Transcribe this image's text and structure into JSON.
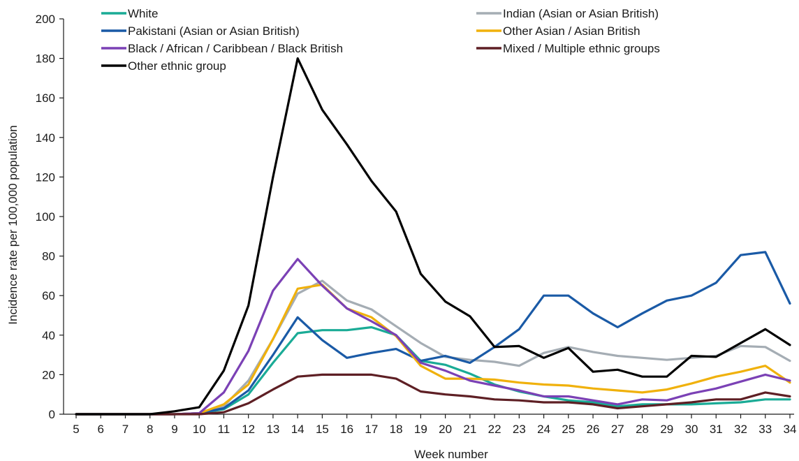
{
  "chart_data": {
    "type": "line",
    "title": "",
    "xlabel": "Week number",
    "ylabel": "Incidence rate per 100,000 population",
    "ylim": [
      0,
      200
    ],
    "yticks": [
      0,
      20,
      40,
      60,
      80,
      100,
      120,
      140,
      160,
      180,
      200
    ],
    "x": [
      5,
      6,
      7,
      8,
      9,
      10,
      11,
      12,
      13,
      14,
      15,
      16,
      17,
      18,
      19,
      20,
      21,
      22,
      23,
      24,
      25,
      26,
      27,
      28,
      29,
      30,
      31,
      32,
      33,
      34
    ],
    "grid": false,
    "legend_position": "top",
    "series": [
      {
        "name": "White",
        "color": "#1aab96",
        "values": [
          0,
          0,
          0,
          0,
          0,
          0.5,
          2.5,
          10,
          26,
          41,
          42.5,
          42.5,
          44,
          40,
          27,
          25,
          20.5,
          15,
          11.5,
          9,
          7,
          6,
          4,
          5,
          5,
          5,
          5.5,
          6,
          7.5,
          7.5
        ]
      },
      {
        "name": "Indian (Asian or Asian British)",
        "color": "#a5adb4",
        "values": [
          0,
          0,
          0,
          0,
          0,
          0.5,
          4,
          17,
          38,
          61,
          67.5,
          57.5,
          53,
          44.5,
          36,
          29,
          27.5,
          26.5,
          24.5,
          31,
          34,
          31.5,
          29.5,
          28.5,
          27.5,
          28.5,
          29.5,
          34.5,
          34,
          27
        ]
      },
      {
        "name": "Pakistani (Asian or Asian British)",
        "color": "#1a5aa6",
        "values": [
          0,
          0,
          0,
          0,
          0,
          0.5,
          3,
          12,
          30,
          49,
          37.5,
          28.5,
          31,
          33,
          27,
          29.5,
          26,
          34,
          43,
          60,
          60,
          51,
          44,
          51,
          57.5,
          60,
          66.5,
          80.5,
          82,
          56
        ]
      },
      {
        "name": "Other Asian / Asian British",
        "color": "#f0b10c",
        "values": [
          0,
          0,
          0,
          0,
          0,
          0.5,
          5,
          15,
          38,
          63.5,
          65.5,
          53.5,
          49,
          39.5,
          24.5,
          18,
          18,
          17.5,
          16,
          15,
          14.5,
          13,
          12,
          11,
          12.5,
          15.5,
          19,
          21.5,
          24.5,
          16
        ]
      },
      {
        "name": "Black / African / Caribbean / Black British",
        "color": "#7b41b5",
        "values": [
          0,
          0,
          0,
          0,
          0,
          0.5,
          11,
          32,
          62.5,
          78.5,
          65,
          53.5,
          47,
          40,
          26,
          22,
          17,
          14.5,
          12,
          9,
          9,
          7,
          5,
          7.5,
          7,
          10.5,
          13,
          16.5,
          20,
          17
        ]
      },
      {
        "name": "Mixed / Multiple ethnic groups",
        "color": "#5e1f24",
        "values": [
          0,
          0,
          0,
          0,
          0,
          0,
          1,
          5.5,
          12.5,
          19,
          20,
          20,
          20,
          18,
          11.5,
          10,
          9,
          7.5,
          7,
          6,
          6,
          5,
          3,
          4,
          5,
          6,
          7.5,
          7.5,
          11,
          9
        ]
      },
      {
        "name": "Other ethnic group",
        "color": "#000000",
        "values": [
          0,
          0,
          0,
          0,
          1.5,
          3.5,
          22,
          55,
          120,
          180,
          154,
          136.5,
          118,
          102.5,
          71,
          57,
          49.5,
          34,
          34.5,
          28.5,
          33.5,
          21.5,
          22.5,
          19,
          19,
          29.5,
          29,
          36,
          43,
          35
        ]
      }
    ]
  }
}
